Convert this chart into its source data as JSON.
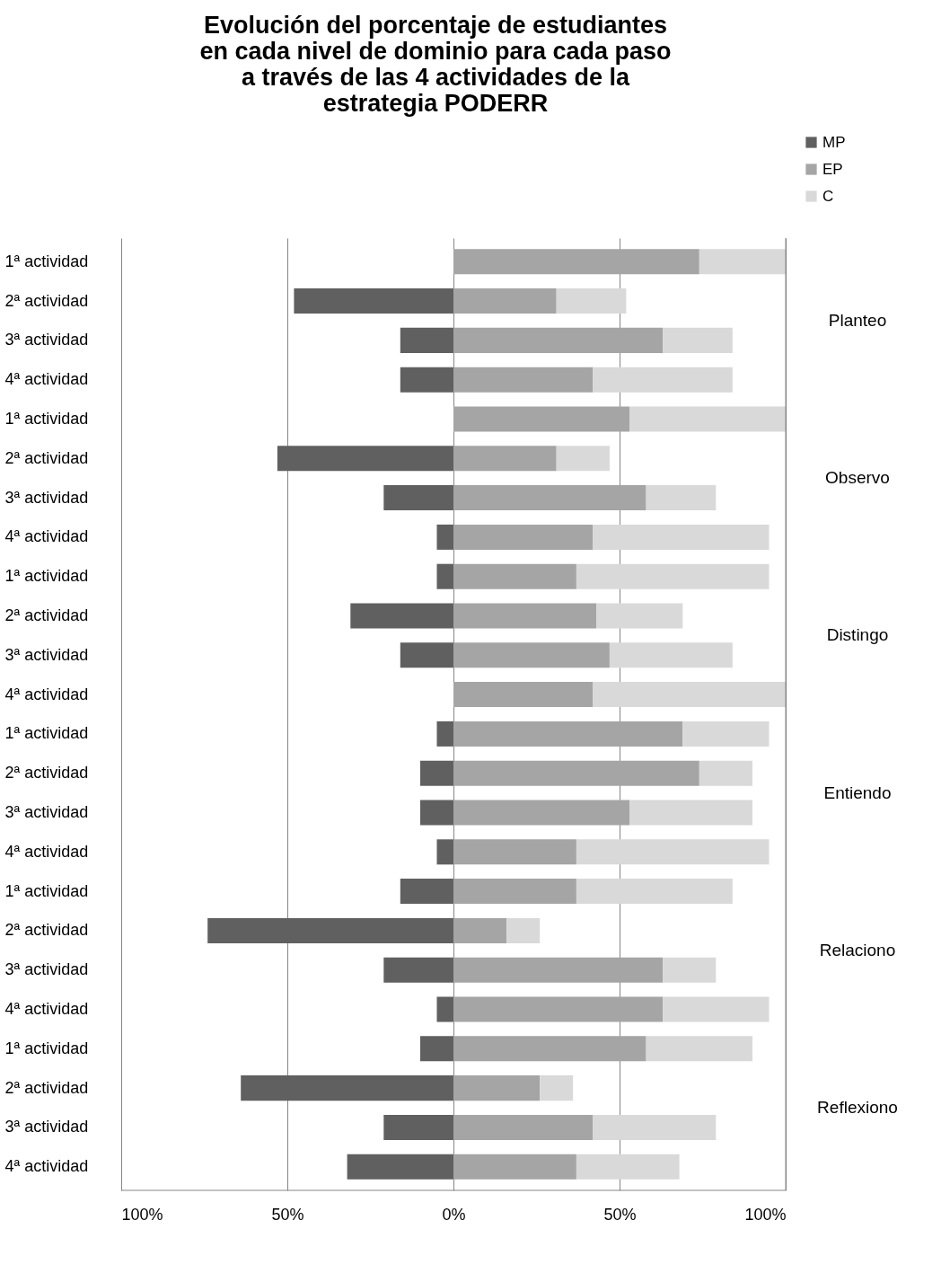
{
  "chart_data": {
    "type": "bar",
    "orientation": "horizontal",
    "stacked": true,
    "title": "Evolución del porcentaje de estudiantes en cada nivel de dominio  para cada paso a través de las 4 actividades de la estrategia PODERR",
    "categories": [
      "1ª actividad",
      "2ª actividad",
      "3ª actividad",
      "4ª actividad",
      "1ª actividad",
      "2ª actividad",
      "3ª actividad",
      "4ª actividad",
      "1ª actividad",
      "2ª actividad",
      "3ª actividad",
      "4ª actividad",
      "1ª actividad",
      "2ª actividad",
      "3ª actividad",
      "4ª actividad",
      "1ª actividad",
      "2ª actividad",
      "3ª actividad",
      "4ª actividad",
      "1ª actividad",
      "2ª actividad",
      "3ª actividad",
      "4ª actividad"
    ],
    "series": [
      {
        "name": "MP",
        "color": "#606060",
        "values": [
          0,
          -48,
          -16,
          -16,
          0,
          -53,
          -21,
          -5,
          -5,
          -31,
          -16,
          0,
          -5,
          -10,
          -10,
          -5,
          -16,
          -74,
          -21,
          -5,
          -10,
          -64,
          -21,
          -32
        ]
      },
      {
        "name": "EP",
        "color": "#a5a5a5",
        "values": [
          74,
          31,
          63,
          42,
          53,
          31,
          58,
          42,
          37,
          43,
          47,
          42,
          69,
          74,
          53,
          37,
          37,
          16,
          63,
          63,
          58,
          26,
          42,
          37
        ]
      },
      {
        "name": "C",
        "color": "#d9d9d9",
        "values": [
          26,
          21,
          21,
          42,
          47,
          16,
          21,
          53,
          58,
          26,
          37,
          58,
          26,
          16,
          37,
          58,
          47,
          10,
          16,
          32,
          32,
          10,
          37,
          31
        ]
      }
    ],
    "xlim": [
      -100,
      100
    ],
    "xticks": [
      {
        "value": -100,
        "label": "100%"
      },
      {
        "value": -50,
        "label": "50%"
      },
      {
        "value": 0,
        "label": "0%"
      },
      {
        "value": 50,
        "label": "50%"
      },
      {
        "value": 100,
        "label": "100%"
      }
    ],
    "grid": "x",
    "legend": "top right",
    "annotations": [
      "Planteo",
      "Observo",
      "Distingo",
      "Entiendo",
      "Relaciono",
      "Reflexiono"
    ]
  }
}
